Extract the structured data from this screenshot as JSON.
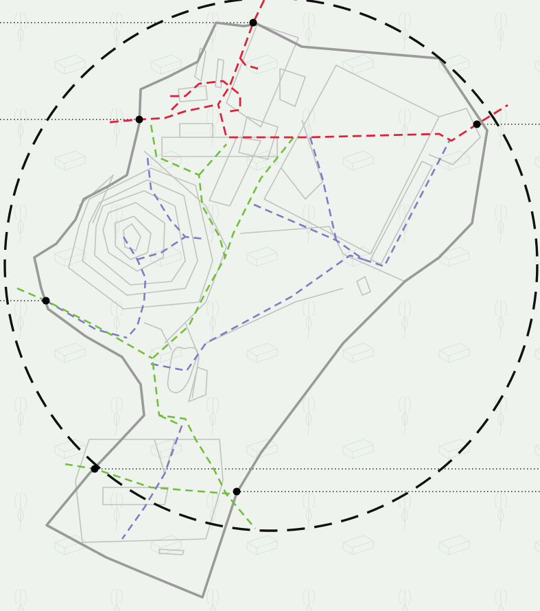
{
  "diagram": {
    "kind": "site-circulation-plan",
    "colors": {
      "background": "#eef3ee",
      "pattern": "#dfe5df",
      "site_boundary": "#9a9a9a",
      "interior_lines": "#c2c2c2",
      "buffer_circle": "#111111",
      "access_nodes": "#000000",
      "guide_lines": "#222222",
      "red_route": "#e02238",
      "green_route": "#72bf3c",
      "purple_route": "#7f7cc2"
    },
    "routes": [
      {
        "id": "red",
        "style": "dashed"
      },
      {
        "id": "green",
        "style": "dashed"
      },
      {
        "id": "purple",
        "style": "dashed"
      }
    ],
    "background_pattern_icons": [
      "beet-sketch-icon",
      "planter-box-sketch-icon"
    ]
  }
}
